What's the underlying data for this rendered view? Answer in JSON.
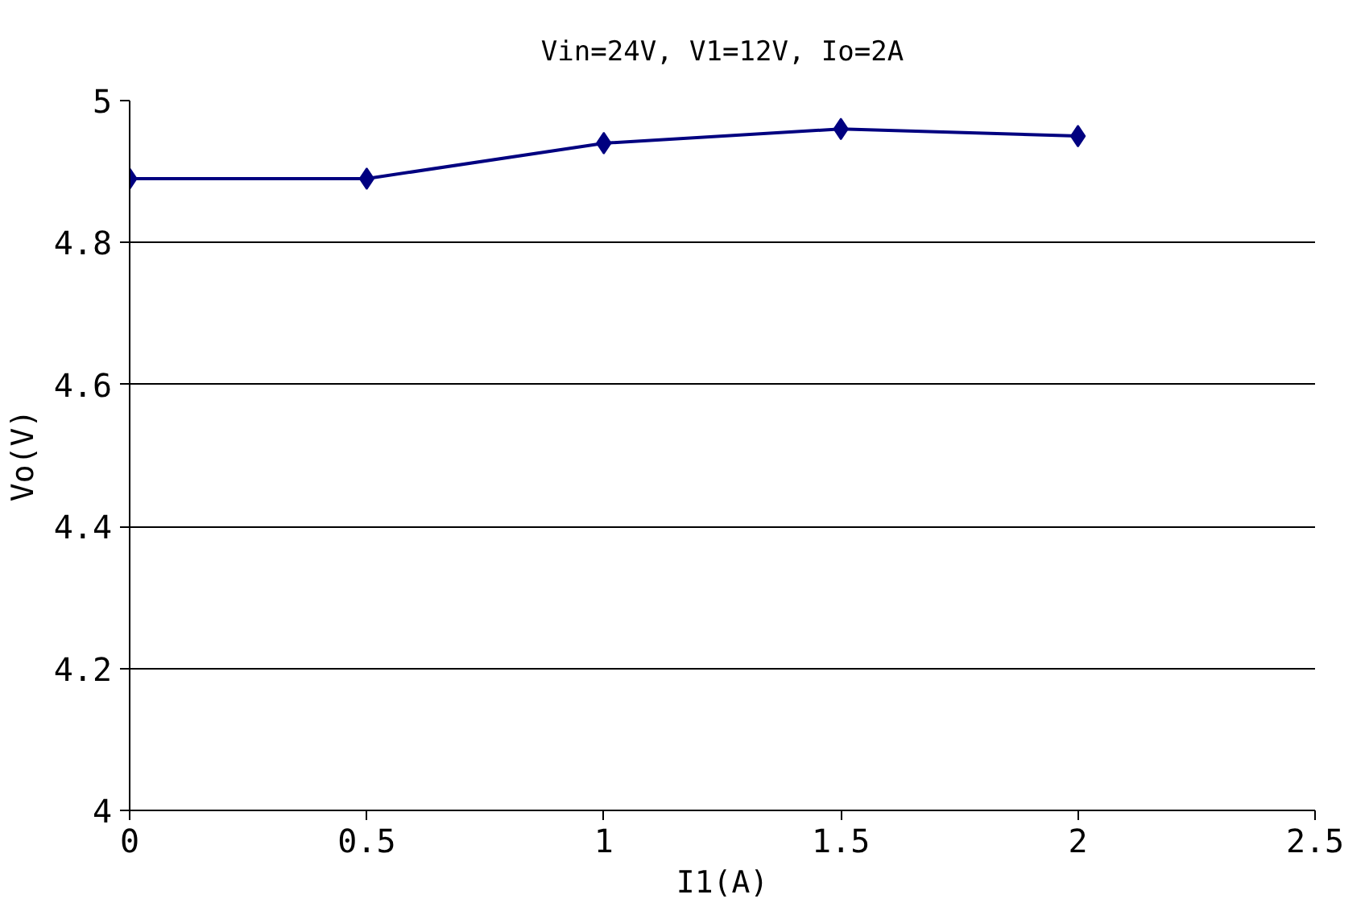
{
  "chart_data": {
    "type": "line",
    "title": "Vin=24V, V1=12V, Io=2A",
    "xlabel": "I1(A)",
    "ylabel": "Vo(V)",
    "x": [
      0,
      0.5,
      1,
      1.5,
      2
    ],
    "series": [
      {
        "color": "#000080",
        "values": [
          4.89,
          4.89,
          4.94,
          4.96,
          4.95
        ]
      }
    ],
    "xlim": [
      0,
      2.5
    ],
    "xticks": [
      0,
      {
        "value": 0.5,
        "label": "0.5"
      },
      1,
      {
        "value": 1.5,
        "label": "1.5"
      },
      2,
      {
        "value": 2.5,
        "label": "2.5"
      }
    ],
    "ylim": [
      4,
      5
    ],
    "yticks": [
      4,
      {
        "value": 4.2,
        "label": "4.2"
      },
      {
        "value": 4.4,
        "label": "4.4"
      },
      {
        "value": 4.6,
        "label": "4.6"
      },
      {
        "value": 4.8,
        "label": "4.8"
      },
      5
    ],
    "grid": "y",
    "marker": "diamond",
    "line_style": "solid"
  }
}
